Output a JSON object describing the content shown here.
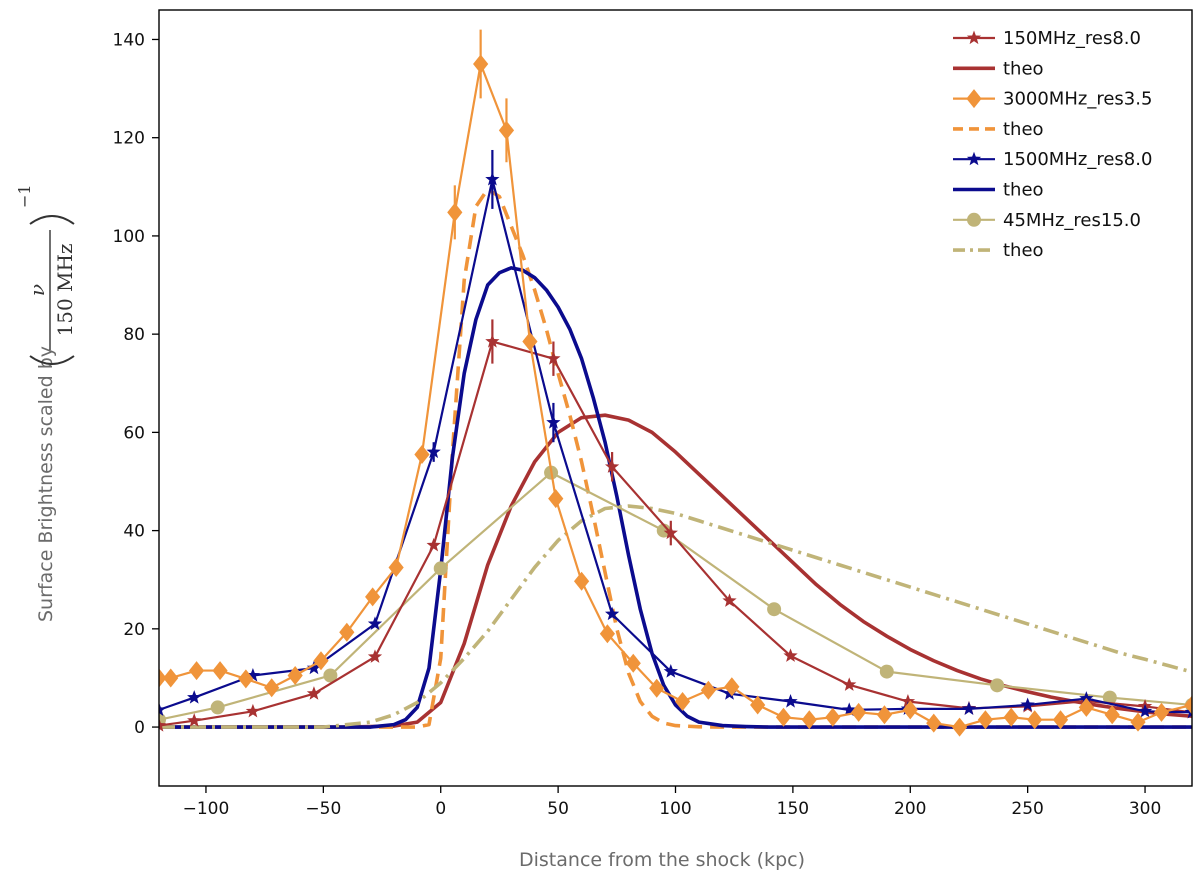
{
  "chart_data": {
    "type": "line",
    "title": "",
    "xlabel": "Distance from the shock (kpc)",
    "ylabel": "Surface Brightness scaled by",
    "ylabel_math": {
      "nu": "ν",
      "denominator": "150 MHz",
      "exponent": "−1"
    },
    "xlim": [
      -120,
      320
    ],
    "ylim": [
      -12,
      146
    ],
    "xticks": [
      -100,
      -50,
      0,
      50,
      100,
      150,
      200,
      250,
      300
    ],
    "xtick_labels": [
      "−100",
      "−50",
      "0",
      "50",
      "100",
      "150",
      "200",
      "250",
      "300"
    ],
    "yticks": [
      0,
      20,
      40,
      60,
      80,
      100,
      120,
      140
    ],
    "ytick_labels": [
      "0",
      "20",
      "40",
      "60",
      "80",
      "100",
      "120",
      "140"
    ],
    "legend_position": "top-right",
    "series": [
      {
        "name": "150MHz_res8.0",
        "kind": "data",
        "color": "#a83232",
        "marker": "star",
        "dash": "solid",
        "x": [
          -120,
          -105,
          -80,
          -54,
          -28,
          -3,
          22,
          48,
          73,
          98,
          123,
          149,
          174,
          199,
          225,
          250,
          275,
          300,
          320
        ],
        "y": [
          0.3,
          1.3,
          3.2,
          6.8,
          14.3,
          37,
          78.5,
          75,
          53,
          39.5,
          25.7,
          14.5,
          8.6,
          5.2,
          3.8,
          4.2,
          5.3,
          4.2,
          3
        ],
        "err": [
          0,
          0,
          0,
          0,
          0,
          0,
          4.5,
          3.5,
          3,
          2.5,
          0,
          0,
          0,
          0,
          0,
          0,
          0,
          0,
          0
        ]
      },
      {
        "name": "theo",
        "kind": "model",
        "color": "#a83232",
        "marker": "none",
        "dash": "solid",
        "x": [
          -120,
          -40,
          -20,
          -10,
          0,
          10,
          20,
          30,
          40,
          50,
          60,
          70,
          80,
          90,
          100,
          110,
          120,
          130,
          140,
          150,
          160,
          170,
          180,
          190,
          200,
          210,
          220,
          230,
          240,
          250,
          260,
          270,
          280,
          290,
          300,
          310,
          320
        ],
        "y": [
          0,
          0,
          0.2,
          1.0,
          5,
          17,
          33,
          45,
          54,
          60,
          63,
          63.5,
          62.5,
          60,
          56,
          51.5,
          47,
          42.5,
          38,
          33.5,
          29,
          25,
          21.5,
          18.5,
          15.8,
          13.5,
          11.5,
          9.8,
          8.4,
          7.2,
          6.1,
          5.2,
          4.4,
          3.7,
          3.1,
          2.6,
          2.2
        ]
      },
      {
        "name": "3000MHz_res3.5",
        "kind": "data",
        "color": "#f0943a",
        "marker": "diamond",
        "dash": "solid",
        "x": [
          -120,
          -115,
          -104,
          -94,
          -83,
          -72,
          -62,
          -51,
          -40,
          -29,
          -19,
          -8,
          6,
          17,
          28,
          38,
          49,
          60,
          71,
          82,
          92,
          103,
          114,
          124,
          135,
          146,
          157,
          167,
          178,
          189,
          200,
          210,
          221,
          232,
          243,
          253,
          264,
          275,
          286,
          297,
          307,
          320
        ],
        "y": [
          10,
          10,
          11.5,
          11.5,
          9.8,
          8,
          10.5,
          13.5,
          19.3,
          26.5,
          32.5,
          55.5,
          104.8,
          135,
          121.5,
          78.5,
          46.5,
          29.7,
          19,
          13,
          7.9,
          5.2,
          7.5,
          8.2,
          4.5,
          2,
          1.5,
          2,
          3,
          2.5,
          3.5,
          0.8,
          0,
          1.5,
          2,
          1.5,
          1.5,
          4,
          2.5,
          1,
          3,
          4.5
        ],
        "err": [
          0,
          0,
          0,
          0,
          0,
          0,
          0,
          0,
          0,
          0,
          0,
          0,
          5.5,
          7,
          6.5,
          0,
          0,
          0,
          0,
          0,
          0,
          0,
          0,
          0,
          0,
          0,
          0,
          0,
          0,
          0,
          0,
          0,
          0,
          0,
          0,
          0,
          0,
          0,
          0,
          0,
          0,
          0
        ]
      },
      {
        "name": "theo",
        "kind": "model",
        "color": "#f0943a",
        "marker": "none",
        "dash": "dashed",
        "x": [
          -120,
          -10,
          -5,
          0,
          5,
          10,
          15,
          20,
          25,
          30,
          35,
          40,
          45,
          50,
          55,
          60,
          65,
          70,
          75,
          80,
          85,
          90,
          95,
          100,
          110,
          120,
          130,
          140,
          160,
          320
        ],
        "y": [
          0,
          0,
          0.5,
          14,
          56,
          91,
          106,
          109.5,
          108,
          102,
          96,
          89,
          81,
          72,
          63.5,
          54,
          43,
          31.5,
          20,
          11,
          5.2,
          2.2,
          0.8,
          0.3,
          0.05,
          0,
          0,
          0,
          0,
          0
        ]
      },
      {
        "name": "1500MHz_res8.0",
        "kind": "data",
        "color": "#0b0b8e",
        "marker": "star",
        "dash": "solid",
        "x": [
          -120,
          -105,
          -80,
          -54,
          -28,
          -3,
          22,
          48,
          73,
          98,
          123,
          149,
          174,
          199,
          225,
          250,
          275,
          300,
          320
        ],
        "y": [
          3.5,
          6,
          10.5,
          12,
          21,
          56,
          111.5,
          62,
          23,
          11.3,
          6.8,
          5.2,
          3.5,
          3.7,
          3.7,
          4.5,
          5.8,
          3.2,
          3
        ],
        "err": [
          0,
          0,
          0,
          0,
          0,
          2,
          6,
          4,
          0,
          0,
          0,
          0,
          0,
          0,
          0,
          0,
          0,
          0,
          0
        ]
      },
      {
        "name": "theo",
        "kind": "model",
        "color": "#0b0b8e",
        "marker": "none",
        "dash": "solid",
        "x": [
          -120,
          -30,
          -20,
          -15,
          -10,
          -5,
          0,
          5,
          10,
          15,
          20,
          25,
          30,
          35,
          40,
          45,
          50,
          55,
          60,
          65,
          70,
          75,
          80,
          85,
          90,
          95,
          100,
          105,
          110,
          120,
          130,
          140,
          150,
          170,
          320
        ],
        "y": [
          0,
          0,
          0.5,
          1.5,
          4,
          12,
          32,
          55,
          72,
          83,
          90,
          92.5,
          93.5,
          93,
          91.5,
          89,
          85.5,
          81,
          75,
          67,
          58,
          47,
          35,
          24,
          15,
          8.5,
          4.5,
          2.2,
          1,
          0.3,
          0.1,
          0,
          0,
          0,
          0
        ]
      },
      {
        "name": "45MHz_res15.0",
        "kind": "data",
        "color": "#c0b478",
        "marker": "circle",
        "dash": "solid",
        "x": [
          -120,
          -95,
          -47,
          0,
          47,
          95,
          142,
          190,
          237,
          285,
          320
        ],
        "y": [
          1.5,
          4,
          10.5,
          32.3,
          51.8,
          40,
          24,
          11.3,
          8.5,
          6,
          4.5
        ],
        "err": [
          0,
          0,
          0,
          0,
          0,
          0,
          0,
          0,
          0,
          0,
          0
        ]
      },
      {
        "name": "theo",
        "kind": "model",
        "color": "#c0b478",
        "marker": "none",
        "dash": "dashdot",
        "x": [
          -120,
          -50,
          -30,
          -20,
          -10,
          0,
          10,
          20,
          30,
          40,
          50,
          60,
          70,
          80,
          90,
          100,
          110,
          120,
          130,
          140,
          150,
          160,
          170,
          180,
          190,
          200,
          210,
          220,
          230,
          240,
          250,
          260,
          270,
          280,
          290,
          300,
          310,
          320
        ],
        "y": [
          0,
          0,
          1,
          2.5,
          5,
          9,
          14,
          19.5,
          26,
          32.5,
          38,
          42,
          44.5,
          45,
          44.5,
          43.5,
          42,
          40.5,
          39,
          37.5,
          36,
          34.5,
          33,
          31.5,
          30,
          28.5,
          27,
          25.5,
          24,
          22.5,
          21,
          19.5,
          18,
          16.5,
          15,
          13.8,
          12.5,
          11.2
        ]
      }
    ]
  }
}
